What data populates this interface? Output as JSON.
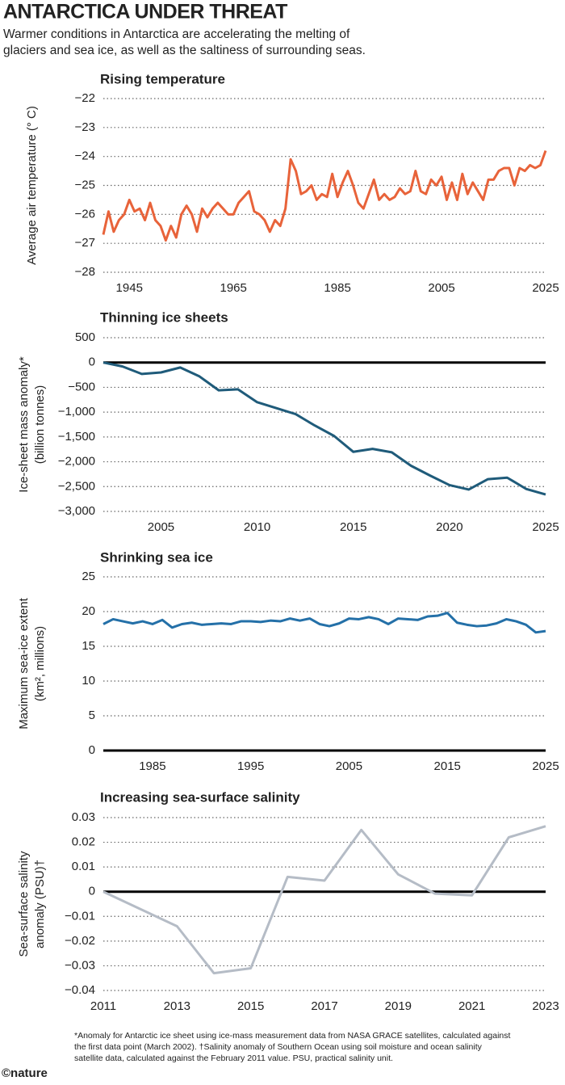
{
  "header": {
    "title": "ANTARCTICA UNDER THREAT",
    "subtitle": [
      "Warmer conditions in Antarctica are accelerating the melting of",
      "glaciers and sea ice, as well as the saltiness of surrounding seas."
    ]
  },
  "chart_data": [
    {
      "type": "line",
      "title": "Rising temperature",
      "ylabel": [
        "Average air temperature (° C)"
      ],
      "color": "#e8633a",
      "grid": true,
      "x": [
        1940,
        1941,
        1942,
        1943,
        1944,
        1945,
        1946,
        1947,
        1948,
        1949,
        1950,
        1951,
        1952,
        1953,
        1954,
        1955,
        1956,
        1957,
        1958,
        1959,
        1960,
        1961,
        1962,
        1963,
        1964,
        1965,
        1966,
        1967,
        1968,
        1969,
        1970,
        1971,
        1972,
        1973,
        1974,
        1975,
        1976,
        1977,
        1978,
        1979,
        1980,
        1981,
        1982,
        1983,
        1984,
        1985,
        1986,
        1987,
        1988,
        1989,
        1990,
        1991,
        1992,
        1993,
        1994,
        1995,
        1996,
        1997,
        1998,
        1999,
        2000,
        2001,
        2002,
        2003,
        2004,
        2005,
        2006,
        2007,
        2008,
        2009,
        2010,
        2011,
        2012,
        2013,
        2014,
        2015,
        2016,
        2017,
        2018,
        2019,
        2020,
        2021,
        2022,
        2023,
        2024,
        2025
      ],
      "values": [
        -26.7,
        -25.9,
        -26.6,
        -26.2,
        -26.0,
        -25.5,
        -25.9,
        -25.8,
        -26.2,
        -25.6,
        -26.2,
        -26.4,
        -26.9,
        -26.4,
        -26.8,
        -26.0,
        -25.7,
        -26.0,
        -26.6,
        -25.8,
        -26.1,
        -25.8,
        -25.6,
        -25.8,
        -26.0,
        -26.0,
        -25.6,
        -25.4,
        -25.2,
        -25.9,
        -26.0,
        -26.2,
        -26.6,
        -26.2,
        -26.4,
        -25.8,
        -24.1,
        -24.5,
        -25.3,
        -25.2,
        -25.0,
        -25.5,
        -25.3,
        -25.4,
        -24.6,
        -25.4,
        -24.9,
        -24.5,
        -25.0,
        -25.6,
        -25.8,
        -25.3,
        -24.8,
        -25.5,
        -25.3,
        -25.5,
        -25.4,
        -25.1,
        -25.3,
        -25.2,
        -24.5,
        -25.2,
        -25.3,
        -24.8,
        -25.0,
        -24.7,
        -25.5,
        -24.9,
        -25.5,
        -24.6,
        -25.3,
        -24.9,
        -25.2,
        -25.5,
        -24.8,
        -24.8,
        -24.5,
        -24.4,
        -24.4,
        -25.0,
        -24.4,
        -24.5,
        -24.3,
        -24.4,
        -24.3,
        -23.8
      ],
      "xlim": [
        1940,
        2025
      ],
      "xticks": [
        1945,
        1965,
        1985,
        2005,
        2025
      ],
      "ylim": [
        -28,
        -22
      ],
      "yticks": [
        {
          "value": -22,
          "label": "−22"
        },
        {
          "value": -23,
          "label": "−23"
        },
        {
          "value": -24,
          "label": "−24"
        },
        {
          "value": -25,
          "label": "−25"
        },
        {
          "value": -26,
          "label": "−26"
        },
        {
          "value": -27,
          "label": "−27"
        },
        {
          "value": -28,
          "label": "−28"
        }
      ]
    },
    {
      "type": "line",
      "title": "Thinning ice sheets",
      "ylabel": [
        "Ice-sheet mass anomaly*",
        "(billion tonnes)"
      ],
      "color": "#1f5b7a",
      "grid": true,
      "zero_line": true,
      "x": [
        2002,
        2003,
        2004,
        2005,
        2006,
        2007,
        2008,
        2009,
        2010,
        2011,
        2012,
        2013,
        2014,
        2015,
        2016,
        2017,
        2018,
        2019,
        2020,
        2021,
        2022,
        2023,
        2024,
        2025
      ],
      "values": [
        0,
        -80,
        -230,
        -200,
        -100,
        -280,
        -560,
        -540,
        -800,
        -920,
        -1040,
        -1270,
        -1480,
        -1800,
        -1740,
        -1810,
        -2080,
        -2280,
        -2470,
        -2560,
        -2350,
        -2320,
        -2550,
        -2660
      ],
      "xlim": [
        2002,
        2025
      ],
      "xticks": [
        2005,
        2010,
        2015,
        2020,
        2025
      ],
      "ylim": [
        -3000,
        500
      ],
      "yticks": [
        500,
        0,
        {
          "value": -500,
          "label": "−500"
        },
        {
          "value": -1000,
          "label": "−1,000"
        },
        {
          "value": -1500,
          "label": "−1,500"
        },
        {
          "value": -2000,
          "label": "−2,000"
        },
        {
          "value": -2500,
          "label": "−2,500"
        },
        {
          "value": -3000,
          "label": "−3,000"
        }
      ]
    },
    {
      "type": "line",
      "title": "Shrinking sea ice",
      "ylabel": [
        "Maximum sea-ice extent",
        "(km², millions)"
      ],
      "color": "#2470a8",
      "grid": true,
      "zero_line": true,
      "x": [
        1980,
        1981,
        1982,
        1983,
        1984,
        1985,
        1986,
        1987,
        1988,
        1989,
        1990,
        1991,
        1992,
        1993,
        1994,
        1995,
        1996,
        1997,
        1998,
        1999,
        2000,
        2001,
        2002,
        2003,
        2004,
        2005,
        2006,
        2007,
        2008,
        2009,
        2010,
        2011,
        2012,
        2013,
        2014,
        2015,
        2016,
        2017,
        2018,
        2019,
        2020,
        2021,
        2022,
        2023,
        2024,
        2025
      ],
      "values": [
        18.2,
        18.9,
        18.6,
        18.3,
        18.6,
        18.2,
        18.8,
        17.7,
        18.2,
        18.4,
        18.1,
        18.2,
        18.3,
        18.2,
        18.6,
        18.6,
        18.5,
        18.7,
        18.6,
        19.0,
        18.7,
        19.0,
        18.2,
        17.9,
        18.3,
        19.0,
        18.9,
        19.2,
        18.9,
        18.2,
        19.0,
        18.9,
        18.8,
        19.3,
        19.4,
        19.8,
        18.4,
        18.1,
        17.9,
        18.0,
        18.3,
        18.9,
        18.6,
        18.1,
        17.0,
        17.2
      ],
      "xlim": [
        1980,
        2025
      ],
      "xticks": [
        1985,
        1995,
        2005,
        2015,
        2025
      ],
      "ylim": [
        0,
        25
      ],
      "yticks": [
        25,
        20,
        15,
        10,
        5,
        0
      ]
    },
    {
      "type": "line",
      "title": "Increasing sea-surface salinity",
      "ylabel": [
        "Sea-surface salinity",
        "anomaly (PSU)†"
      ],
      "color": "#b5bcc6",
      "grid": true,
      "zero_line": true,
      "x": [
        2011,
        2013,
        2014,
        2015,
        2016,
        2017,
        2018,
        2019,
        2020,
        2021,
        2022,
        2023
      ],
      "values": [
        0,
        -0.014,
        -0.033,
        -0.031,
        0.006,
        0.0045,
        0.025,
        0.007,
        -0.0008,
        -0.0015,
        0.022,
        0.0265
      ],
      "xlim": [
        2011,
        2023
      ],
      "xticks": [
        2011,
        2013,
        2015,
        2017,
        2019,
        2021,
        2023
      ],
      "ylim": [
        -0.04,
        0.03
      ],
      "yticks": [
        0.03,
        0.02,
        0.01,
        0,
        {
          "value": -0.01,
          "label": "−0.01"
        },
        {
          "value": -0.02,
          "label": "−0.02"
        },
        {
          "value": -0.03,
          "label": "−0.03"
        },
        {
          "value": -0.04,
          "label": "−0.04"
        }
      ]
    }
  ],
  "footnote": [
    "*Anomaly for Antarctic ice sheet using ice-mass measurement data from NASA GRACE satellites, calculated against",
    "the first data point (March 2002). †Salinity anomaly of Southern Ocean using soil moisture and ocean salinity",
    "satellite data, calculated against the February 2011 value. PSU, practical salinity unit."
  ],
  "credit": "©nature"
}
